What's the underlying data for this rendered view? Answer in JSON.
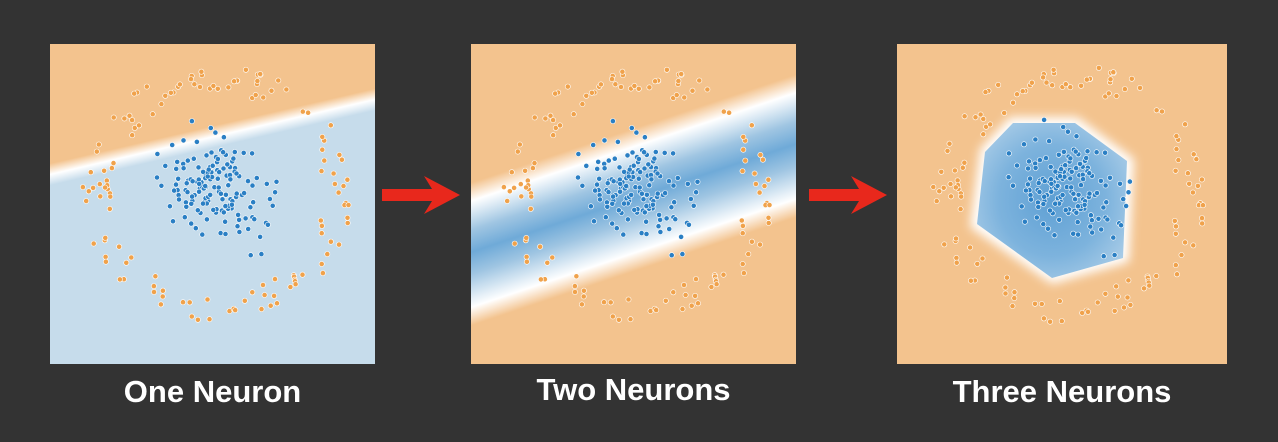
{
  "panels": [
    {
      "caption": "One Neuron"
    },
    {
      "caption": "Two Neurons"
    },
    {
      "caption": "Three Neurons"
    }
  ],
  "colors": {
    "background": "#333333",
    "orange_region": "#F3C38E",
    "blue_region_light": "#C6DCEB",
    "blue_region_dark": "#6FAAD8",
    "orange_point": "#F0A24B",
    "blue_point": "#2A7FC4",
    "arrow": "#E8281C"
  },
  "arrows": [
    {
      "from": "One Neuron",
      "to": "Two Neurons"
    },
    {
      "from": "Two Neurons",
      "to": "Three Neurons"
    }
  ]
}
